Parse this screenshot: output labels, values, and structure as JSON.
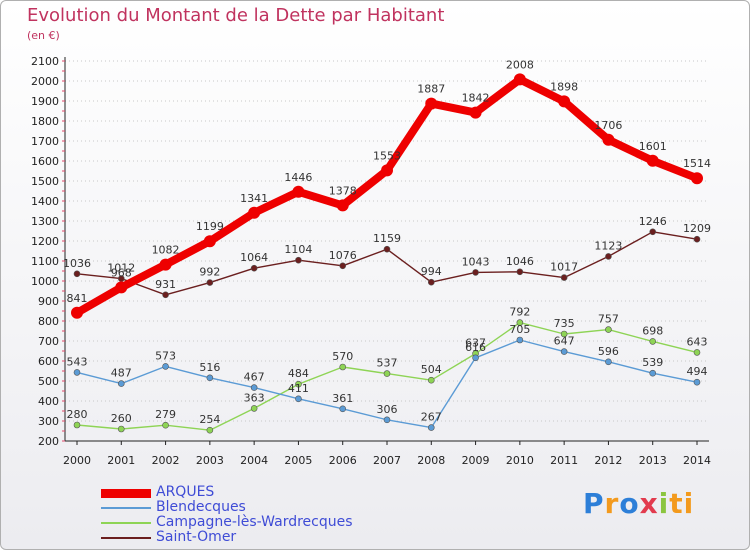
{
  "chart_data": {
    "type": "line",
    "title": "Evolution du Montant de la Dette par Habitant",
    "subtitle": "(en €)",
    "x": [
      "2000",
      "2001",
      "2002",
      "2003",
      "2004",
      "2005",
      "2006",
      "2007",
      "2008",
      "2009",
      "2010",
      "2011",
      "2012",
      "2013",
      "2014"
    ],
    "ylim": [
      200,
      2100
    ],
    "ytick_step": 100,
    "grid": "horizontal dotted",
    "legend_position": "bottom-left",
    "series": [
      {
        "name": "ARQUES",
        "color": "#ee0000",
        "values": [
          841,
          968,
          1082,
          1199,
          1341,
          1446,
          1378,
          1553,
          1887,
          1842,
          2008,
          1898,
          1706,
          1601,
          1514
        ]
      },
      {
        "name": "Blendecques",
        "color": "#5b9bd5",
        "values": [
          543,
          487,
          573,
          516,
          467,
          411,
          361,
          306,
          267,
          616,
          705,
          647,
          596,
          539,
          494
        ]
      },
      {
        "name": "Campagne-lès-Wardrecques",
        "color": "#8ed455",
        "values": [
          280,
          260,
          279,
          254,
          363,
          484,
          570,
          537,
          504,
          637,
          792,
          735,
          757,
          698,
          643
        ]
      },
      {
        "name": "Saint-Omer",
        "color": "#6b1f1f",
        "values": [
          1036,
          1012,
          931,
          992,
          1064,
          1104,
          1076,
          1159,
          994,
          1043,
          1046,
          1017,
          1123,
          1246,
          1209
        ]
      }
    ]
  },
  "brand": {
    "letters": [
      "P",
      "r",
      "o",
      "x",
      "i",
      "ti"
    ]
  }
}
